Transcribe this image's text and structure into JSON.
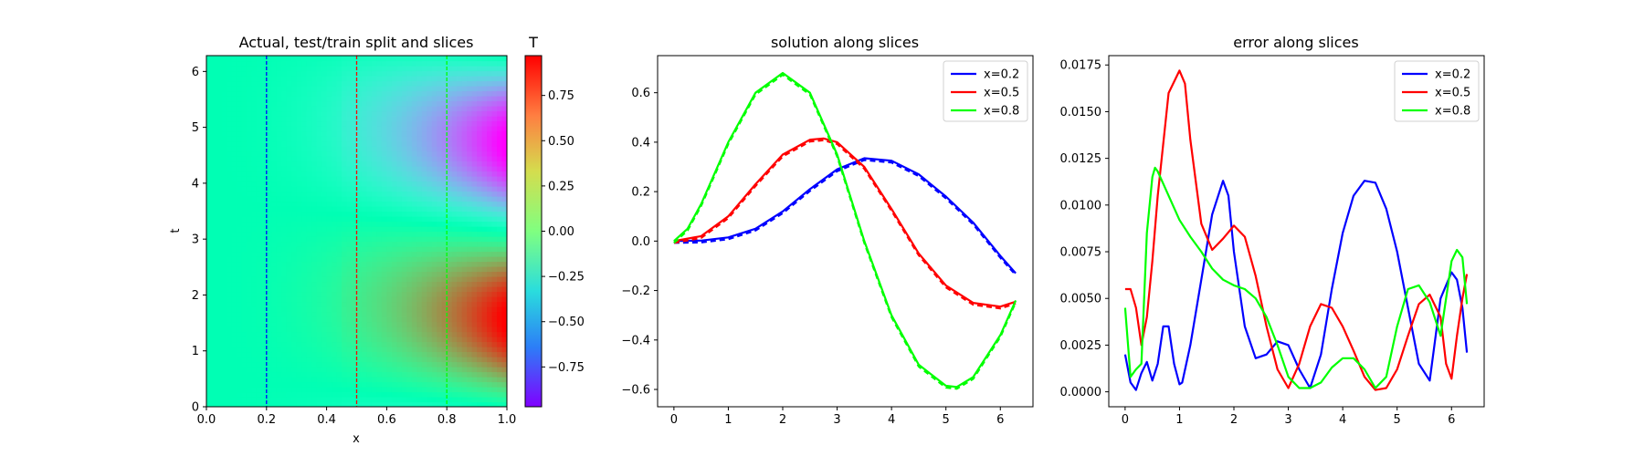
{
  "chart_data": [
    {
      "type": "heatmap",
      "title": "Actual, test/train split and slices",
      "xlabel": "x",
      "ylabel": "t",
      "xlim": [
        0.0,
        1.0
      ],
      "ylim": [
        0,
        6.283
      ],
      "x_ticks": [
        "0.0",
        "0.2",
        "0.4",
        "0.6",
        "0.8",
        "1.0"
      ],
      "y_ticks": [
        "0",
        "1",
        "2",
        "3",
        "4",
        "5",
        "6"
      ],
      "colormap": "rainbow",
      "colorbar": {
        "label": "T",
        "range": [
          -0.97,
          0.97
        ],
        "ticks": [
          "0.75",
          "0.50",
          "0.25",
          "0.00",
          "−0.25",
          "−0.50",
          "−0.75"
        ]
      },
      "slices": [
        {
          "x": 0.2,
          "color": "#0000ff",
          "style": "dashed"
        },
        {
          "x": 0.5,
          "color": "#ff0000",
          "style": "dashed"
        },
        {
          "x": 0.8,
          "color": "#00ff00",
          "style": "dashed"
        }
      ]
    },
    {
      "type": "line",
      "title": "solution along slices",
      "xlim": [
        -0.3,
        6.6
      ],
      "ylim": [
        -0.67,
        0.75
      ],
      "x_ticks": [
        "0",
        "1",
        "2",
        "3",
        "4",
        "5",
        "6"
      ],
      "y_ticks": [
        "0.6",
        "0.4",
        "0.2",
        "0.0",
        "−0.2",
        "−0.4",
        "−0.6"
      ],
      "legend_position": "top-right",
      "series": [
        {
          "name": "x=0.2",
          "color": "#0000ff",
          "x": [
            0,
            0.5,
            1.0,
            1.5,
            2.0,
            2.5,
            3.0,
            3.5,
            4.0,
            4.5,
            5.0,
            5.5,
            6.0,
            6.283
          ],
          "values": [
            0.0,
            0.002,
            0.015,
            0.05,
            0.12,
            0.21,
            0.29,
            0.335,
            0.325,
            0.27,
            0.18,
            0.075,
            -0.06,
            -0.13
          ]
        },
        {
          "name": "x=0.5",
          "color": "#ff0000",
          "x": [
            0,
            0.5,
            1.0,
            1.5,
            2.0,
            2.5,
            2.75,
            3.0,
            3.5,
            4.0,
            4.5,
            5.0,
            5.5,
            6.0,
            6.283
          ],
          "values": [
            0.0,
            0.02,
            0.1,
            0.23,
            0.35,
            0.41,
            0.415,
            0.4,
            0.3,
            0.13,
            -0.05,
            -0.18,
            -0.25,
            -0.265,
            -0.245
          ]
        },
        {
          "name": "x=0.8",
          "color": "#00ff00",
          "x": [
            0,
            0.25,
            0.5,
            1.0,
            1.5,
            2.0,
            2.5,
            3.0,
            3.5,
            4.0,
            4.5,
            5.0,
            5.2,
            5.5,
            6.0,
            6.283
          ],
          "values": [
            0.0,
            0.05,
            0.15,
            0.4,
            0.6,
            0.68,
            0.6,
            0.35,
            0.0,
            -0.3,
            -0.5,
            -0.585,
            -0.59,
            -0.55,
            -0.38,
            -0.24
          ]
        }
      ]
    },
    {
      "type": "line",
      "title": "error along slices",
      "xlim": [
        -0.3,
        6.6
      ],
      "ylim": [
        -0.0008,
        0.018
      ],
      "x_ticks": [
        "0",
        "1",
        "2",
        "3",
        "4",
        "5",
        "6"
      ],
      "y_ticks": [
        "0.0175",
        "0.0150",
        "0.0125",
        "0.0100",
        "0.0075",
        "0.0050",
        "0.0025",
        "0.0000"
      ],
      "legend_position": "top-right",
      "series": [
        {
          "name": "x=0.2",
          "color": "#0000ff",
          "x": [
            0,
            0.1,
            0.2,
            0.3,
            0.4,
            0.5,
            0.6,
            0.7,
            0.8,
            0.9,
            1.0,
            1.05,
            1.2,
            1.4,
            1.6,
            1.8,
            1.9,
            2.0,
            2.2,
            2.4,
            2.6,
            2.8,
            3.0,
            3.2,
            3.4,
            3.6,
            3.8,
            4.0,
            4.2,
            4.4,
            4.6,
            4.8,
            5.0,
            5.2,
            5.4,
            5.6,
            5.8,
            6.0,
            6.1,
            6.2,
            6.283
          ],
          "values": [
            0.002,
            0.0005,
            0.0001,
            0.001,
            0.0016,
            0.0006,
            0.0015,
            0.0035,
            0.0035,
            0.0015,
            0.0004,
            0.0005,
            0.0025,
            0.006,
            0.0095,
            0.0113,
            0.0105,
            0.0075,
            0.0035,
            0.0018,
            0.002,
            0.0027,
            0.0025,
            0.0012,
            0.0002,
            0.002,
            0.0055,
            0.0085,
            0.0105,
            0.0113,
            0.0112,
            0.0098,
            0.0075,
            0.0045,
            0.0015,
            0.0006,
            0.005,
            0.0064,
            0.006,
            0.0045,
            0.0021
          ]
        },
        {
          "name": "x=0.5",
          "color": "#ff0000",
          "x": [
            0,
            0.1,
            0.2,
            0.3,
            0.4,
            0.5,
            0.6,
            0.8,
            1.0,
            1.1,
            1.2,
            1.4,
            1.6,
            1.8,
            2.0,
            2.2,
            2.4,
            2.6,
            2.8,
            3.0,
            3.2,
            3.4,
            3.6,
            3.8,
            4.0,
            4.2,
            4.4,
            4.6,
            4.8,
            5.0,
            5.2,
            5.4,
            5.6,
            5.8,
            5.9,
            6.0,
            6.1,
            6.2,
            6.283
          ],
          "values": [
            0.0055,
            0.0055,
            0.0045,
            0.0025,
            0.004,
            0.007,
            0.0105,
            0.016,
            0.0172,
            0.0165,
            0.0135,
            0.009,
            0.0076,
            0.0082,
            0.0089,
            0.0083,
            0.0062,
            0.0035,
            0.0012,
            0.0002,
            0.0015,
            0.0035,
            0.0047,
            0.0045,
            0.0035,
            0.0022,
            0.0008,
            0.0001,
            0.0002,
            0.0012,
            0.003,
            0.0047,
            0.0052,
            0.004,
            0.0015,
            0.0007,
            0.003,
            0.005,
            0.0063
          ]
        },
        {
          "name": "x=0.8",
          "color": "#00ff00",
          "x": [
            0,
            0.1,
            0.2,
            0.3,
            0.4,
            0.5,
            0.55,
            0.6,
            0.8,
            1.0,
            1.2,
            1.4,
            1.6,
            1.8,
            2.0,
            2.2,
            2.4,
            2.6,
            2.8,
            3.0,
            3.2,
            3.4,
            3.6,
            3.8,
            4.0,
            4.2,
            4.4,
            4.6,
            4.8,
            5.0,
            5.2,
            5.4,
            5.6,
            5.8,
            6.0,
            6.1,
            6.2,
            6.283
          ],
          "values": [
            0.0045,
            0.0008,
            0.0012,
            0.0015,
            0.0085,
            0.0115,
            0.012,
            0.0118,
            0.0105,
            0.0092,
            0.0083,
            0.0075,
            0.0066,
            0.006,
            0.0057,
            0.0055,
            0.005,
            0.004,
            0.0025,
            0.0008,
            0.0002,
            0.0002,
            0.0005,
            0.0013,
            0.0018,
            0.0018,
            0.0012,
            0.0002,
            0.0008,
            0.0035,
            0.0055,
            0.0057,
            0.0048,
            0.003,
            0.007,
            0.0076,
            0.0072,
            0.0047
          ]
        }
      ]
    }
  ]
}
